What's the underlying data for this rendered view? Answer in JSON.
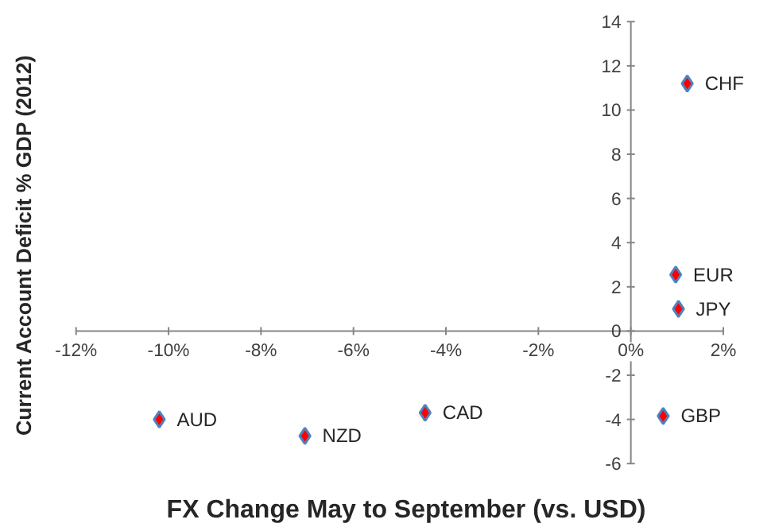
{
  "chart_data": {
    "type": "scatter",
    "xlabel": "FX Change May to September (vs. USD)",
    "ylabel": "Current Account Deficit % GDP (2012)",
    "x": [
      -10.2,
      -7.05,
      -4.45,
      0.7,
      1.03,
      0.97,
      1.22
    ],
    "values": [
      -4.0,
      -4.75,
      -3.7,
      -3.85,
      1.0,
      2.55,
      11.2
    ],
    "color": "#ff0000",
    "marker": "diamond",
    "grid": false,
    "xlim": [
      -12,
      2
    ],
    "ylim": [
      -6,
      14
    ],
    "xticks": [
      {
        "value": -12,
        "label": "-12%"
      },
      {
        "value": -10,
        "label": "-10%"
      },
      {
        "value": -8,
        "label": "-8%"
      },
      {
        "value": -6,
        "label": "-6%"
      },
      {
        "value": -4,
        "label": "-4%"
      },
      {
        "value": -2,
        "label": "-2%"
      },
      {
        "value": 0,
        "label": "0%"
      },
      {
        "value": 2,
        "label": "2%"
      }
    ],
    "yticks": [
      -6,
      -4,
      -2,
      0,
      2,
      4,
      6,
      8,
      10,
      12,
      14
    ],
    "annotations": [
      {
        "text": "AUD",
        "x": -10.2,
        "y": -4.0
      },
      {
        "text": "NZD",
        "x": -7.05,
        "y": -4.75
      },
      {
        "text": "CAD",
        "x": -4.45,
        "y": -3.7
      },
      {
        "text": "GBP",
        "x": 0.7,
        "y": -3.85
      },
      {
        "text": "JPY",
        "x": 1.03,
        "y": 1.0
      },
      {
        "text": "EUR",
        "x": 0.97,
        "y": 2.55
      },
      {
        "text": "CHF",
        "x": 1.22,
        "y": 11.2
      }
    ]
  }
}
